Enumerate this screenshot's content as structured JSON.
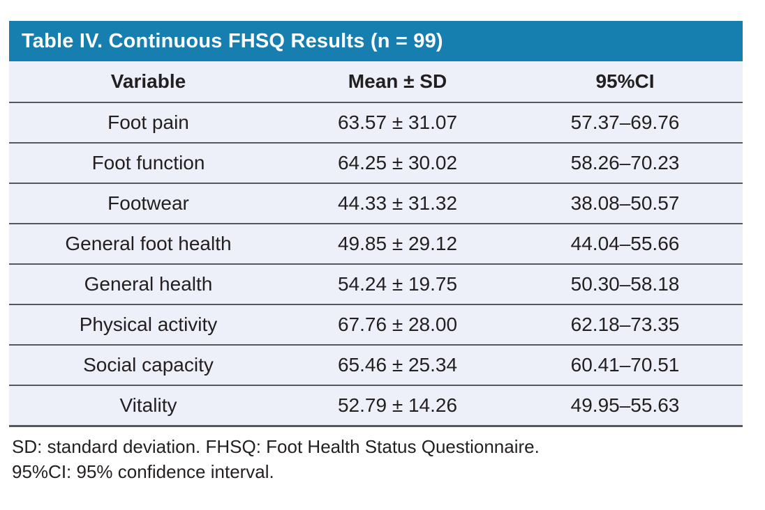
{
  "table": {
    "title": "Table IV. Continuous FHSQ Results (n = 99)",
    "columns": [
      "Variable",
      "Mean ± SD",
      "95%CI"
    ],
    "rows": [
      {
        "variable": "Foot pain",
        "mean_sd": "63.57 ± 31.07",
        "ci95": "57.37–69.76"
      },
      {
        "variable": "Foot function",
        "mean_sd": "64.25 ± 30.02",
        "ci95": "58.26–70.23"
      },
      {
        "variable": "Footwear",
        "mean_sd": "44.33 ± 31.32",
        "ci95": "38.08–50.57"
      },
      {
        "variable": "General foot health",
        "mean_sd": "49.85 ± 29.12",
        "ci95": "44.04–55.66"
      },
      {
        "variable": "General health",
        "mean_sd": "54.24 ± 19.75",
        "ci95": "50.30–58.18"
      },
      {
        "variable": "Physical activity",
        "mean_sd": "67.76 ± 28.00",
        "ci95": "62.18–73.35"
      },
      {
        "variable": "Social capacity",
        "mean_sd": "65.46 ± 25.34",
        "ci95": "60.41–70.51"
      },
      {
        "variable": "Vitality",
        "mean_sd": "52.79 ± 14.26",
        "ci95": "49.95–55.63"
      }
    ],
    "footnotes": [
      "SD: standard deviation. FHSQ: Foot Health Status Questionnaire.",
      "95%CI: 95% confidence interval."
    ],
    "colors": {
      "title_bg": "#177fb0",
      "title_text": "#ffffff",
      "row_bg": "#edf0f8",
      "divider": "#56575a",
      "text": "#231f20",
      "page_bg": "#ffffff"
    }
  }
}
